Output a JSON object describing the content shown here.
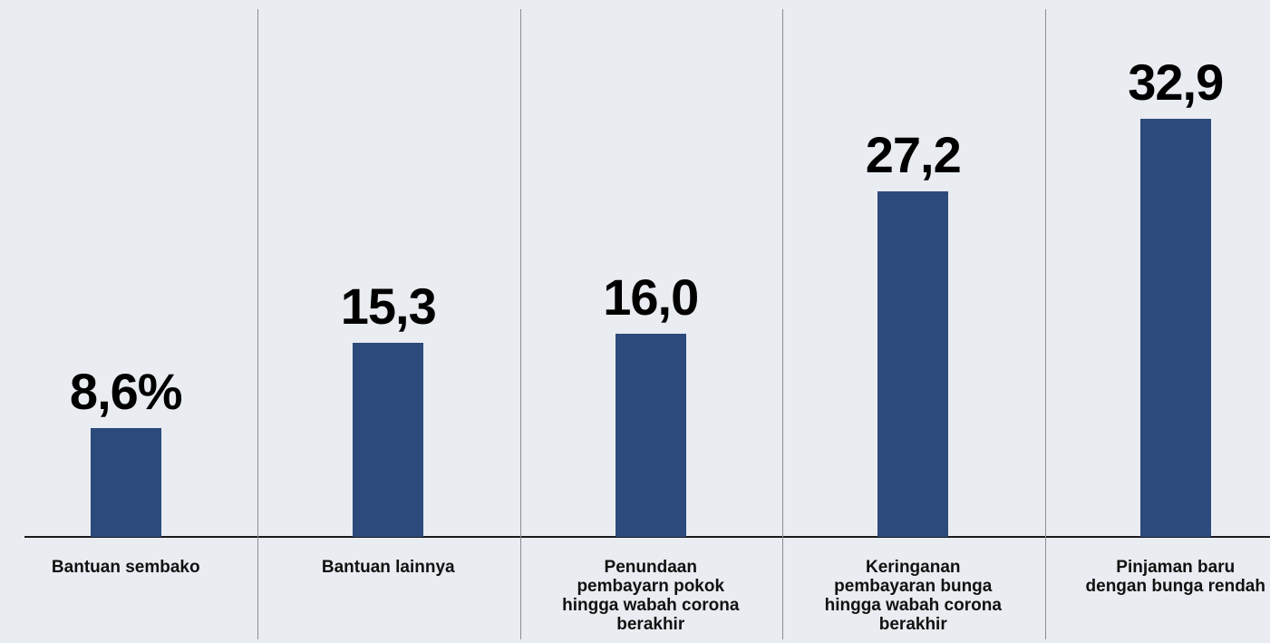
{
  "chart_data": {
    "type": "bar",
    "categories": [
      "Bantuan sembako",
      "Bantuan lainnya",
      "Penundaan pembayarn pokok hingga wabah corona berakhir",
      "Keringanan pembayaran bunga hingga wabah corona berakhir",
      "Pinjaman baru dengan bunga rendah"
    ],
    "values": [
      8.6,
      15.3,
      16.0,
      27.2,
      32.9
    ],
    "value_labels": [
      "8,6%",
      "15,3",
      "16,0",
      "27,2",
      "32,9"
    ],
    "color": "#2c4a7c",
    "ylim": [
      0,
      40
    ]
  }
}
